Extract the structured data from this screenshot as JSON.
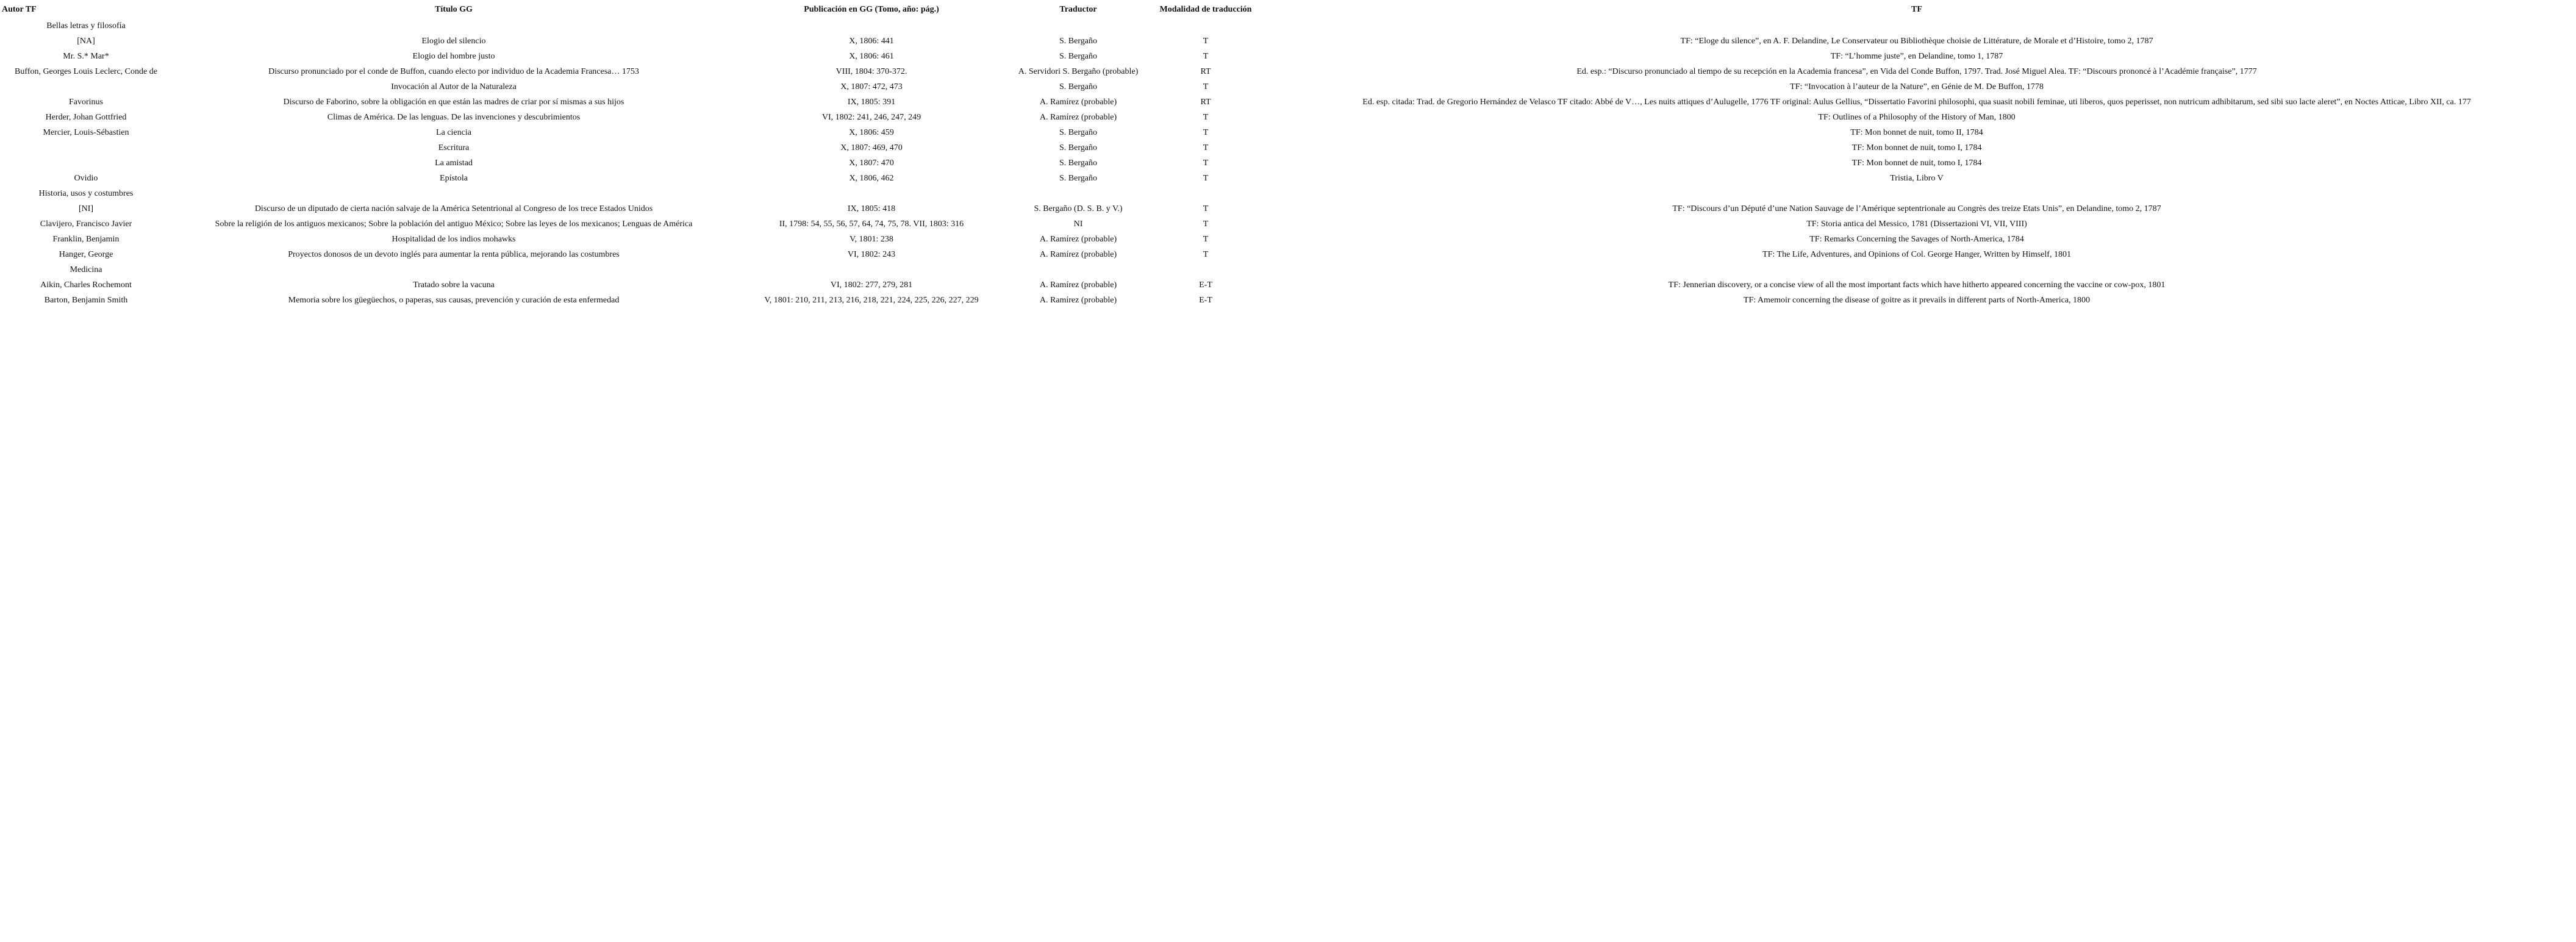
{
  "table": {
    "headers": [
      "Autor TF",
      "Título GG",
      "Publicación en GG (Tomo, año: pág.)",
      "Traductor",
      "Modalidad de traducción",
      "TF"
    ],
    "rows": [
      [
        "Bellas letras y filosofía",
        "",
        "",
        "",
        "",
        ""
      ],
      [
        "[NA]",
        "Elogio del silencio",
        "X, 1806: 441",
        "S. Bergaño",
        "T",
        "TF: “Eloge du silence”, en A. F. Delandine, Le Conservateur ou Bibliothèque choisie de Littérature, de Morale et d’Histoire, tomo 2, 1787"
      ],
      [
        "Mr. S.* Mar*",
        "Elogio del hombre justo",
        "X, 1806: 461",
        "S. Bergaño",
        "T",
        "TF: “L’homme juste”, en Delandine, tomo 1, 1787"
      ],
      [
        "Buffon, Georges Louis Leclerc, Conde de",
        "Discurso pronunciado por el conde de Buffon, cuando electo por individuo de la Academia Francesa… 1753",
        "VIII, 1804: 370-372.",
        "A. Servidori S. Bergaño (probable)",
        "RT",
        "Ed. esp.: “Discurso pronunciado al tiempo de su recepción en la Academia francesa”, en Vida del Conde Buffon, 1797. Trad. José Miguel Alea. TF: “Discours prononcé à l’Académie française”, 1777"
      ],
      [
        "",
        "Invocación al Autor de la Naturaleza",
        "X, 1807: 472, 473",
        "S. Bergaño",
        "T",
        "TF: “Invocation à l’auteur de la Nature”, en Génie de M. De Buffon, 1778"
      ],
      [
        "Favorinus",
        "Discurso de Faborino, sobre la obligación en que están las madres de criar por sí mismas a sus hijos",
        "IX, 1805: 391",
        "A. Ramírez (probable)",
        "RT",
        "Ed. esp. citada: Trad. de Gregorio Hernández de Velasco TF citado: Abbé de V…, Les nuits attiques d’Aulugelle, 1776 TF original: Aulus Gellius, “Dissertatio Favorini philosophi, qua suasit nobili feminae, uti liberos, quos peperisset, non nutricum adhibitarum, sed sibi suo lacte aleret”, en Noctes Atticae, Libro XII, ca. 177"
      ],
      [
        "Herder, Johan Gottfried",
        "Climas de América. De las lenguas. De las invenciones y descubrimientos",
        "VI, 1802: 241, 246, 247, 249",
        "A. Ramírez (probable)",
        "T",
        "TF: Outlines of a Philosophy of the History of Man, 1800"
      ],
      [
        "Mercier, Louis-Sébastien",
        "La ciencia",
        "X, 1806: 459",
        "S. Bergaño",
        "T",
        "TF: Mon bonnet de nuit, tomo II, 1784"
      ],
      [
        "",
        "Escritura",
        "X, 1807: 469, 470",
        "S. Bergaño",
        "T",
        "TF: Mon bonnet de nuit, tomo I, 1784"
      ],
      [
        "",
        "La amistad",
        "X, 1807: 470",
        "S. Bergaño",
        "T",
        "TF: Mon bonnet de nuit, tomo I, 1784"
      ],
      [
        "Ovidio",
        "Epístola",
        "X, 1806, 462",
        "S. Bergaño",
        "T",
        "Tristia, Libro V"
      ],
      [
        "Historia, usos y costumbres",
        "",
        "",
        "",
        "",
        ""
      ],
      [
        "[NI]",
        "Discurso de un diputado de cierta nación salvaje de la América Setentrional al Congreso de los trece Estados Unidos",
        "IX, 1805: 418",
        "S. Bergaño (D. S. B. y V.)",
        "T",
        "TF: “Discours d’un Député d’une Nation Sauvage de l’Amérique septentrionale au Congrès des treize Etats Unis”, en Delandine, tomo 2, 1787"
      ],
      [
        "Clavijero, Francisco Javier",
        "Sobre la religión de los antiguos mexicanos; Sobre la población del antiguo México; Sobre las leyes de los mexicanos; Lenguas de América",
        "II, 1798: 54, 55, 56, 57, 64, 74, 75, 78. VII, 1803: 316",
        "NI",
        "T",
        "TF: Storia antica del Messico, 1781 (Dissertazioni VI, VII, VIII)"
      ],
      [
        "Franklin, Benjamin",
        "Hospitalidad de los indios mohawks",
        "V, 1801: 238",
        "A. Ramírez (probable)",
        "T",
        "TF: Remarks Concerning the Savages of North-America, 1784"
      ],
      [
        "Hanger, George",
        "Proyectos donosos de un devoto inglés para aumentar la renta pública, mejorando las costumbres",
        "VI, 1802: 243",
        "A. Ramírez (probable)",
        "T",
        "TF: The Life, Adventures, and Opinions of Col. George Hanger, Written by Himself, 1801"
      ],
      [
        "Medicina",
        "",
        "",
        "",
        "",
        ""
      ],
      [
        "Aikin, Charles Rochemont",
        "Tratado sobre la vacuna",
        "VI, 1802: 277, 279, 281",
        "A. Ramírez (probable)",
        "E-T",
        "TF: Jennerian discovery, or a concise view of all the most important facts which have hitherto appeared concerning the vaccine or cow-pox, 1801"
      ],
      [
        "Barton, Benjamin Smith",
        "Memoria sobre los güegüechos, o paperas, sus causas, prevención y curación de esta enfermedad",
        "V, 1801: 210, 211, 213, 216, 218, 221, 224, 225, 226, 227, 229",
        "A. Ramírez (probable)",
        "E-T",
        "TF: Amemoir concerning the disease of goitre as it prevails in different parts of North-America, 1800"
      ]
    ]
  }
}
